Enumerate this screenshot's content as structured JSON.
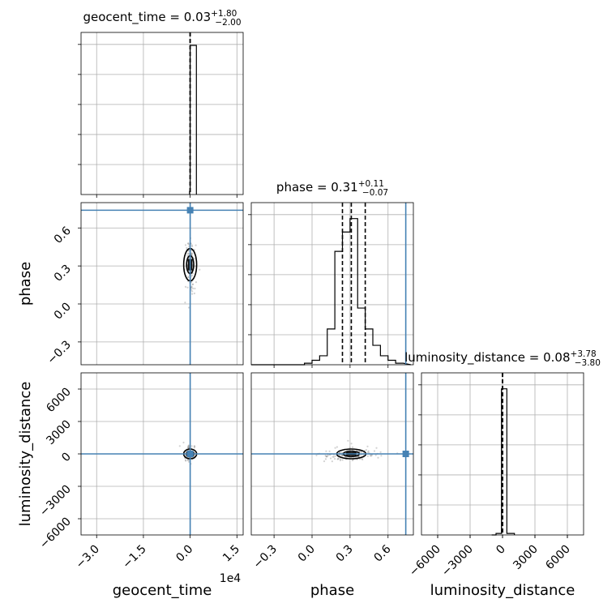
{
  "chart_data": {
    "type": "corner",
    "parameters": [
      {
        "name": "geocent_time",
        "axis_label": "geocent_time",
        "median": 0.03,
        "plus": 1.8,
        "minus": 2.0,
        "title_main": "geocent_time = 0.03",
        "title_plus": "+1.80",
        "title_minus": "−2.00",
        "range": [
          -35000,
          17000
        ],
        "ticks": [
          -30000,
          -15000,
          0,
          15000
        ],
        "tick_labels": [
          "−3.0",
          "−1.5",
          "0.0",
          "1.5"
        ],
        "offset_label": "1e4",
        "quantiles": [
          -2,
          0.03,
          1.8
        ],
        "truth": 0.03,
        "hist_edges": [
          -200,
          0,
          2000
        ],
        "hist_counts": [
          0.02,
          1.0
        ]
      },
      {
        "name": "phase",
        "axis_label": "phase",
        "median": 0.31,
        "plus": 0.11,
        "minus": 0.07,
        "title_main": "phase = 0.31",
        "title_plus": "+0.11",
        "title_minus": "−0.07",
        "range": [
          -0.48,
          0.8
        ],
        "ticks": [
          -0.3,
          0.0,
          0.3,
          0.6
        ],
        "tick_labels": [
          "−0.3",
          "0.0",
          "0.3",
          "0.6"
        ],
        "quantiles": [
          0.24,
          0.31,
          0.42
        ],
        "truth": 0.74,
        "hist_edges": [
          -0.48,
          -0.06,
          0.0,
          0.06,
          0.12,
          0.18,
          0.24,
          0.3,
          0.36,
          0.42,
          0.48,
          0.54,
          0.6,
          0.66,
          0.72,
          0.78
        ],
        "hist_counts": [
          0.0,
          0.01,
          0.03,
          0.06,
          0.24,
          0.76,
          0.89,
          0.98,
          0.38,
          0.24,
          0.13,
          0.06,
          0.03,
          0.01
        ]
      },
      {
        "name": "luminosity_distance",
        "axis_label": "luminosity_distance",
        "median": 0.08,
        "plus": 3.78,
        "minus": 3.8,
        "title_main": "luminosity_distance = 0.08",
        "title_plus": "+3.78",
        "title_minus": "−3.80",
        "range": [
          -7500,
          7500
        ],
        "ticks": [
          -6000,
          -3000,
          0,
          3000,
          6000
        ],
        "tick_labels": [
          "−6000",
          "−3000",
          "0",
          "3000",
          "6000"
        ],
        "quantiles": [
          -3.8,
          0.08,
          3.78
        ],
        "truth": 0.08,
        "hist_edges": [
          -1000,
          -600,
          -100,
          400,
          1100
        ],
        "hist_counts": [
          0.0,
          0.01,
          0.98,
          0.01
        ]
      }
    ],
    "pairs": [
      {
        "row": 1,
        "col": 0,
        "contour_center": [
          0,
          0.31
        ],
        "truth": [
          0.03,
          0.74
        ]
      },
      {
        "row": 2,
        "col": 0,
        "contour_center": [
          0,
          0
        ],
        "truth": [
          0.03,
          0.08
        ]
      },
      {
        "row": 2,
        "col": 1,
        "contour_center": [
          0.31,
          0
        ],
        "truth": [
          0.74,
          0.08
        ]
      }
    ],
    "grid": true,
    "colors": {
      "truth": "#4682b4",
      "hist": "#000000",
      "samples": "#7f7f7f"
    }
  }
}
